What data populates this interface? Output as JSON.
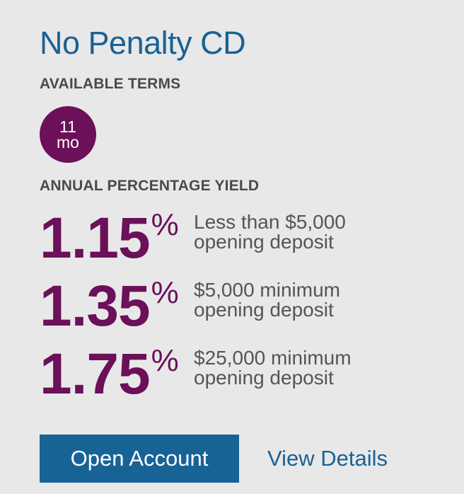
{
  "product": {
    "title": "No Penalty CD"
  },
  "terms": {
    "label": "AVAILABLE TERMS",
    "items": [
      {
        "number": "11",
        "unit": "mo"
      }
    ]
  },
  "apy": {
    "label": "ANNUAL PERCENTAGE YIELD",
    "rates": [
      {
        "value": "1.15",
        "symbol": "%",
        "line1": "Less than $5,000",
        "line2": "opening deposit"
      },
      {
        "value": "1.35",
        "symbol": "%",
        "line1": "$5,000 minimum",
        "line2": "opening deposit"
      },
      {
        "value": "1.75",
        "symbol": "%",
        "line1": "$25,000 minimum",
        "line2": "opening deposit"
      }
    ]
  },
  "actions": {
    "open_label": "Open Account",
    "details_label": "View Details"
  },
  "colors": {
    "brand_blue": "#1a6293",
    "button_blue": "#186396",
    "rate_purple": "#6b1059",
    "background": "#e8e8e9"
  }
}
